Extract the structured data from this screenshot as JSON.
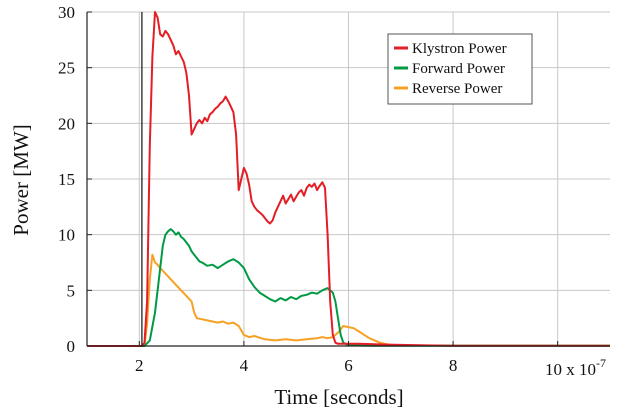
{
  "chart_data": {
    "type": "line",
    "title": "",
    "xlabel": "Time [seconds]",
    "ylabel": "Power [MW]",
    "xlim": [
      1.0,
      11.0
    ],
    "ylim": [
      0,
      30
    ],
    "x_ticks": [
      2,
      4,
      6,
      8,
      10
    ],
    "x_tick_labels": [
      "2",
      "4",
      "6",
      "8",
      "10"
    ],
    "y_ticks": [
      0,
      5,
      10,
      15,
      20,
      25,
      30
    ],
    "y_tick_labels": [
      "0",
      "5",
      "10",
      "15",
      "20",
      "25",
      "30"
    ],
    "x_multiplier": {
      "base": "10 x 10",
      "exponent": "-7"
    },
    "grid": true,
    "legend_position": "top-right",
    "series": [
      {
        "name": "Klystron Power",
        "color": "#e31e24",
        "x": [
          1.0,
          2.05,
          2.1,
          2.15,
          2.2,
          2.25,
          2.3,
          2.35,
          2.4,
          2.45,
          2.5,
          2.55,
          2.6,
          2.65,
          2.7,
          2.75,
          2.8,
          2.85,
          2.9,
          2.95,
          3.0,
          3.05,
          3.1,
          3.15,
          3.2,
          3.25,
          3.3,
          3.35,
          3.4,
          3.45,
          3.5,
          3.55,
          3.6,
          3.65,
          3.7,
          3.75,
          3.8,
          3.85,
          3.9,
          3.95,
          4.0,
          4.05,
          4.1,
          4.15,
          4.2,
          4.25,
          4.3,
          4.35,
          4.4,
          4.45,
          4.5,
          4.55,
          4.6,
          4.65,
          4.7,
          4.75,
          4.8,
          4.85,
          4.9,
          4.95,
          5.0,
          5.05,
          5.1,
          5.15,
          5.2,
          5.25,
          5.3,
          5.35,
          5.4,
          5.45,
          5.5,
          5.55,
          5.6,
          5.65,
          5.7,
          5.75,
          5.8,
          5.85,
          5.9,
          6.0,
          6.2,
          6.5,
          7.0,
          7.5,
          8.0,
          9.0,
          10.0,
          11.0
        ],
        "values": [
          0,
          0,
          0.3,
          4.0,
          18.0,
          26.0,
          30.0,
          29.5,
          28.0,
          27.8,
          28.3,
          28.0,
          27.5,
          27.0,
          26.2,
          26.5,
          26.0,
          25.5,
          24.5,
          22.5,
          19.0,
          19.5,
          20.0,
          20.3,
          20.0,
          20.5,
          20.2,
          20.8,
          21.0,
          21.3,
          21.5,
          21.8,
          22.0,
          22.4,
          22.0,
          21.5,
          21.0,
          19.0,
          14.0,
          15.0,
          16.0,
          15.5,
          14.5,
          13.0,
          12.5,
          12.2,
          12.0,
          11.8,
          11.5,
          11.2,
          11.0,
          11.3,
          12.0,
          12.5,
          13.0,
          13.5,
          12.8,
          13.2,
          13.6,
          13.0,
          13.4,
          13.8,
          14.0,
          13.5,
          14.2,
          14.5,
          14.3,
          14.6,
          14.0,
          14.4,
          14.7,
          14.2,
          10.0,
          4.0,
          1.0,
          0.3,
          0.2,
          0.2,
          0.2,
          0.2,
          0.2,
          0.15,
          0.1,
          0.05,
          0.02,
          0.02,
          0.02,
          0.02
        ]
      },
      {
        "name": "Forward Power",
        "color": "#009a44",
        "x": [
          1.0,
          2.1,
          2.2,
          2.3,
          2.4,
          2.45,
          2.5,
          2.55,
          2.6,
          2.65,
          2.7,
          2.75,
          2.8,
          2.85,
          2.9,
          2.95,
          3.0,
          3.05,
          3.1,
          3.15,
          3.2,
          3.3,
          3.4,
          3.5,
          3.6,
          3.7,
          3.8,
          3.9,
          4.0,
          4.1,
          4.2,
          4.3,
          4.4,
          4.5,
          4.6,
          4.7,
          4.8,
          4.9,
          5.0,
          5.1,
          5.2,
          5.3,
          5.4,
          5.5,
          5.6,
          5.7,
          5.75,
          5.8,
          5.85,
          5.9,
          6.0,
          6.5,
          7.0,
          8.0,
          9.0,
          10.0,
          11.0
        ],
        "values": [
          0,
          0,
          0.5,
          3.0,
          7.0,
          9.0,
          10.0,
          10.3,
          10.5,
          10.3,
          10.0,
          10.2,
          9.8,
          9.6,
          9.3,
          9.0,
          8.5,
          8.2,
          7.9,
          7.6,
          7.5,
          7.2,
          7.3,
          7.0,
          7.3,
          7.6,
          7.8,
          7.5,
          7.0,
          6.0,
          5.3,
          4.8,
          4.5,
          4.2,
          4.0,
          4.3,
          4.1,
          4.4,
          4.2,
          4.5,
          4.6,
          4.8,
          4.7,
          5.0,
          5.2,
          4.8,
          4.0,
          2.5,
          1.0,
          0.3,
          0.05,
          0.02,
          0.02,
          0.02,
          0.02,
          0.02,
          0.02
        ]
      },
      {
        "name": "Reverse Power",
        "color": "#f7a124",
        "x": [
          1.0,
          2.1,
          2.15,
          2.2,
          2.25,
          2.3,
          2.35,
          2.4,
          2.5,
          2.6,
          2.7,
          2.8,
          2.9,
          3.0,
          3.05,
          3.1,
          3.2,
          3.3,
          3.4,
          3.5,
          3.6,
          3.7,
          3.8,
          3.9,
          4.0,
          4.1,
          4.2,
          4.4,
          4.6,
          4.8,
          5.0,
          5.2,
          5.4,
          5.5,
          5.6,
          5.7,
          5.8,
          5.9,
          6.0,
          6.1,
          6.2,
          6.3,
          6.4,
          6.5,
          6.6,
          6.7,
          6.8,
          7.0,
          8.0,
          11.0
        ],
        "values": [
          0,
          0,
          2.0,
          6.0,
          8.2,
          7.5,
          7.3,
          7.0,
          6.5,
          6.0,
          5.5,
          5.0,
          4.5,
          4.0,
          3.0,
          2.5,
          2.4,
          2.3,
          2.2,
          2.1,
          2.2,
          2.0,
          2.1,
          1.8,
          1.0,
          0.8,
          0.9,
          0.6,
          0.5,
          0.6,
          0.5,
          0.6,
          0.7,
          0.8,
          0.7,
          0.8,
          1.2,
          1.8,
          1.7,
          1.6,
          1.3,
          1.0,
          0.7,
          0.5,
          0.3,
          0.2,
          0.1,
          0.05,
          0.02,
          0.02
        ]
      }
    ]
  }
}
